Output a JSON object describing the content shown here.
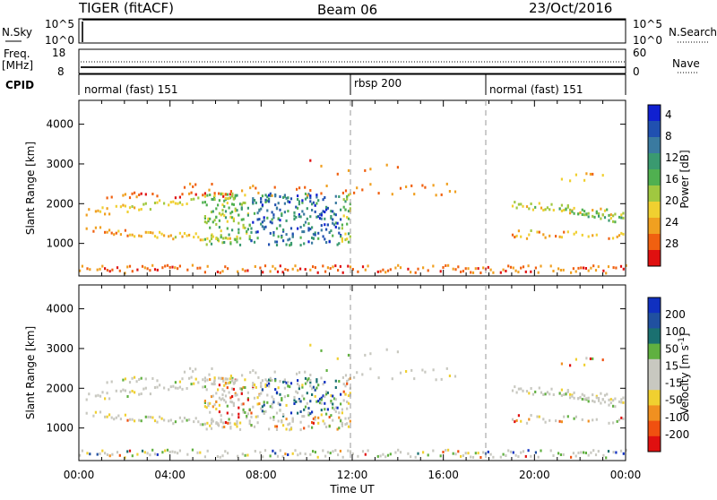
{
  "header": {
    "title": "TIGER (fitACF)",
    "beam": "Beam 06",
    "date": "23/Oct/2016"
  },
  "top_panels": {
    "nsky_label": "N.Sky",
    "nsky_ticks": [
      "10^5",
      "10^0"
    ],
    "nsearch_label": "N.Search",
    "nsearch_ticks": [
      "10^5",
      "10^0"
    ],
    "freq_label": "Freq.",
    "freq_unit": "[MHz]",
    "freq_ticks": [
      "18",
      "8"
    ],
    "nave_label": "Nave",
    "nave_ticks": [
      "60",
      "0"
    ],
    "cpid_label": "CPID",
    "cpid_segments": [
      {
        "label": "normal (fast) 151",
        "start_hour": 0
      },
      {
        "label": "rbsp 200",
        "start_hour": 12
      },
      {
        "label": "normal (fast) 151",
        "start_hour": 18
      }
    ]
  },
  "chart_data": [
    {
      "type": "heatmap",
      "name": "power",
      "ylabel": "Slant Range [km]",
      "y_ticks": [
        1000,
        2000,
        3000,
        4000
      ],
      "ylim": [
        180,
        4600
      ],
      "x_ticks": [
        "00:00",
        "04:00",
        "08:00",
        "12:00",
        "16:00",
        "20:00",
        "00:00"
      ],
      "xlim_hours": [
        0,
        24
      ],
      "colorbar": {
        "label": "Power [dB]",
        "ticks": [
          "4",
          "8",
          "12",
          "16",
          "20",
          "24",
          "28"
        ],
        "colors": [
          "#1020d0",
          "#2050b0",
          "#3a7aa0",
          "#3a9a70",
          "#50b050",
          "#a0c840",
          "#f0d030",
          "#f0a020",
          "#f06010",
          "#e01010"
        ]
      }
    },
    {
      "type": "heatmap",
      "name": "velocity",
      "ylabel": "Slant Range [km]",
      "y_ticks": [
        1000,
        2000,
        3000,
        4000
      ],
      "ylim": [
        180,
        4600
      ],
      "x_ticks": [
        "00:00",
        "04:00",
        "08:00",
        "12:00",
        "16:00",
        "20:00",
        "00:00"
      ],
      "xlim_hours": [
        0,
        24
      ],
      "xlabel": "Time UT",
      "colorbar": {
        "label": "Velocity [m s",
        "label_sup": "-1",
        "label_close": "]",
        "ticks": [
          "200",
          "100",
          "50",
          "15",
          "-15",
          "-50",
          "-100",
          "-200"
        ],
        "colors": [
          "#1030c0",
          "#2050a0",
          "#1a7070",
          "#60b040",
          "#c8c8c0",
          "#c8c8c0",
          "#f0d030",
          "#f09020",
          "#f05010",
          "#e01010"
        ]
      }
    }
  ]
}
